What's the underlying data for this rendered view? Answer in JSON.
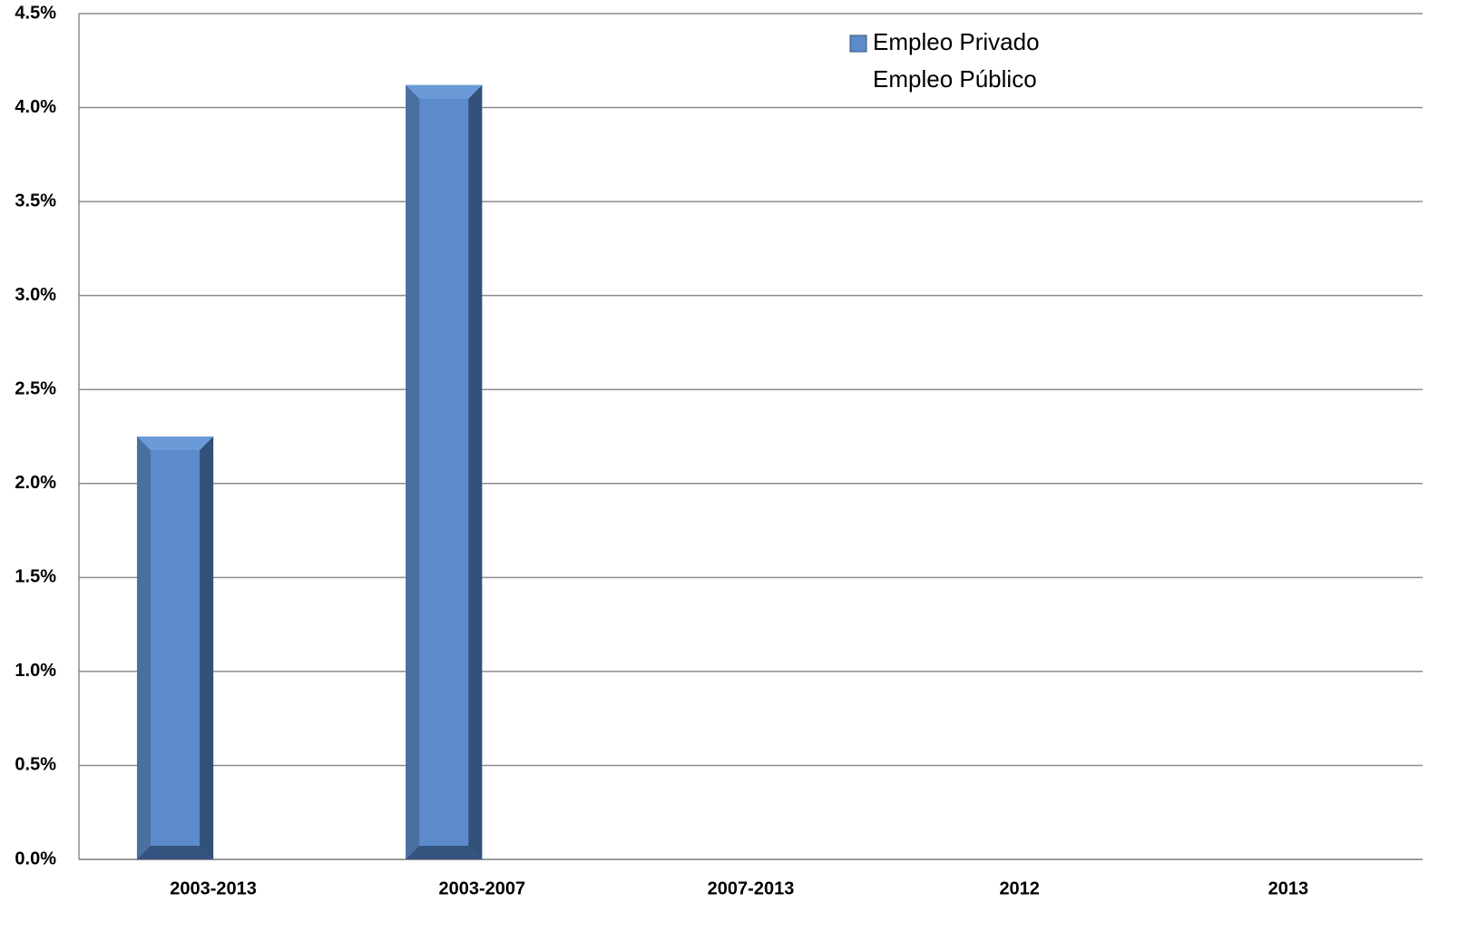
{
  "chart_data": {
    "type": "bar",
    "categories": [
      "2003-2013",
      "2003-2007",
      "2007-2013",
      "2012",
      "2013"
    ],
    "series": [
      {
        "name": "Empleo Privado",
        "color": "#5b8bcb",
        "values": [
          2.25,
          4.12,
          null,
          null,
          null
        ]
      },
      {
        "name": "Empleo Público",
        "values": [
          null,
          null,
          null,
          null,
          null
        ]
      }
    ],
    "ylim": [
      0,
      4.5
    ],
    "yticks": [
      {
        "value": 0,
        "label": "0.0%"
      },
      {
        "value": 0.5,
        "label": "0.5%"
      },
      {
        "value": 1,
        "label": "1.0%"
      },
      {
        "value": 1.5,
        "label": "1.5%"
      },
      {
        "value": 2,
        "label": "2.0%"
      },
      {
        "value": 2.5,
        "label": "2.5%"
      },
      {
        "value": 3,
        "label": "3.0%"
      },
      {
        "value": 3.5,
        "label": "3.5%"
      },
      {
        "value": 4,
        "label": "4.0%"
      },
      {
        "value": 4.5,
        "label": "4.5%"
      }
    ],
    "grid": true
  }
}
